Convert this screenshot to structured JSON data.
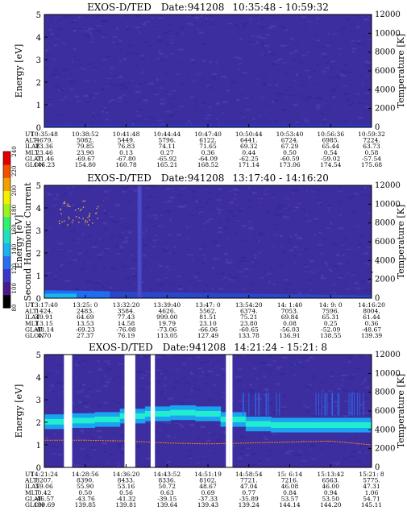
{
  "chart_data": [
    {
      "type": "heatmap",
      "title": "EXOS-D/TED",
      "date_label": "Date:941208",
      "time_range": "10:35:48 - 10:59:32",
      "ylabel": "Energy [eV]",
      "ylabel_right": "Temperature [K]",
      "ylim": [
        0,
        5
      ],
      "yticks": [
        "0",
        "1",
        "2",
        "3",
        "4",
        "5"
      ],
      "ylim_right": [
        0,
        12000
      ],
      "yticks_right": [
        "0",
        "2000",
        "4000",
        "6000",
        "8000",
        "10000",
        "12000"
      ],
      "background": "#3c2e9e",
      "noise": "#4a3bb0",
      "bottom_band_color": "#2a39c4",
      "orbit_row_labels": [
        "UT",
        "ALT",
        "ILAT",
        "MLT",
        "GLAT",
        "GLON"
      ],
      "orbit_columns": [
        [
          "10:35:48",
          "4679.",
          "83.36",
          "23.46",
          "-71.46",
          "146.23"
        ],
        [
          "10:38:52",
          "5082.",
          "79.85",
          "23.90",
          "-69.67",
          "154.80"
        ],
        [
          "10:41:48",
          "5449.",
          "76.83",
          "0.13",
          "-67.80",
          "160.78"
        ],
        [
          "10:44:44",
          "5796.",
          "74.11",
          "0.27",
          "-65.92",
          "165.21"
        ],
        [
          "10:47:40",
          "6122.",
          "71.65",
          "0.36",
          "-64.09",
          "168.52"
        ],
        [
          "10:50:44",
          "6441.",
          "69.32",
          "0.44",
          "-62.25",
          "171.14"
        ],
        [
          "10:53:40",
          "6724.",
          "67.29",
          "0.50",
          "-60.59",
          "173.06"
        ],
        [
          "10:56:36",
          "6985.",
          "65.44",
          "0.54",
          "-59.02",
          "174.54"
        ],
        [
          "10:59:32",
          "7224.",
          "63.73",
          "0.58",
          "-57.54",
          "175.68"
        ]
      ]
    },
    {
      "type": "heatmap",
      "title": "EXOS-D/TED",
      "date_label": "Date:941208",
      "time_range": "13:17:40 - 14:16:20",
      "ylabel": "Energy [eV]",
      "ylabel_right": "Temperature [K]",
      "ylim": [
        0,
        5
      ],
      "yticks": [
        "0",
        "1",
        "2",
        "3",
        "4",
        "5"
      ],
      "ylim_right": [
        0,
        12000
      ],
      "yticks_right": [
        "0",
        "2000",
        "4000",
        "6000",
        "8000",
        "10000",
        "12000"
      ],
      "background": "#3c2e9e",
      "noise": "#4a3bb0",
      "bottom_band_color": "#1f6ef0",
      "orbit_row_labels": [
        "UT",
        "ALT",
        "ILAT",
        "MLT",
        "GLAT",
        "GLON"
      ],
      "orbit_columns": [
        [
          "13:17:40",
          "1424.",
          "49.91",
          "13.15",
          "-48.14",
          "4.70"
        ],
        [
          "13:25: 0",
          "2483.",
          "64.69",
          "13.53",
          "-69.23",
          "27.37"
        ],
        [
          "13:32:20",
          "3584.",
          "77.43",
          "14.58",
          "-76.08",
          "76.19"
        ],
        [
          "13:39:40",
          "4626.",
          "999.00",
          "19.79",
          "-73.06",
          "113.05"
        ],
        [
          "13:47: 0",
          "5562.",
          "81.51",
          "23.10",
          "-66.06",
          "127.49"
        ],
        [
          "13:54:20",
          "6374.",
          "75.21",
          "23.80",
          "-60.65",
          "133.78"
        ],
        [
          "14: 1:40",
          "7053.",
          "69.84",
          "0.08",
          "-56.03",
          "136.91"
        ],
        [
          "14: 9: 0",
          "7596.",
          "65.31",
          "0.25",
          "-52.09",
          "138.55"
        ],
        [
          "14:16:20",
          "8004.",
          "61.44",
          "0.36",
          "-48.67",
          "139.39"
        ]
      ]
    },
    {
      "type": "heatmap",
      "title": "EXOS-D/TED",
      "date_label": "Date:941208",
      "time_range": "14:21:24 - 15:21: 8",
      "ylabel": "Energy [eV]",
      "ylabel_right": "Temperature [K]",
      "ylim": [
        0,
        5
      ],
      "yticks": [
        "0",
        "1",
        "2",
        "3",
        "4",
        "5"
      ],
      "ylim_right": [
        0,
        12000
      ],
      "yticks_right": [
        "0",
        "2000",
        "4000",
        "6000",
        "8000",
        "10000",
        "12000"
      ],
      "background": "#3c2e9e",
      "noise": "#4a3bb0",
      "band_outer": "#1aa3f0",
      "band_inner": "#22eecf",
      "band_energy_ev": [
        2.0,
        2.05,
        2.1,
        2.25,
        2.35,
        2.4,
        2.35,
        2.1,
        1.9,
        1.85,
        1.85,
        1.85,
        1.85
      ],
      "band_times": [
        "14:21:24",
        "14:28:56",
        "14:36:20",
        "14:43:52",
        "14:51:19",
        "14:58:54",
        "15: 6:14",
        "15:13:42",
        "15:21: 8"
      ],
      "temperature_curve_k": [
        2900,
        2900,
        2800,
        2600,
        2500,
        2600,
        2700,
        2800,
        2400
      ],
      "temperature_color": "#ff7a1a",
      "data_gaps_fraction": [
        [
          0.06,
          0.085
        ],
        [
          0.245,
          0.278
        ],
        [
          0.325,
          0.338
        ],
        [
          0.555,
          0.565
        ],
        [
          0.565,
          0.575
        ]
      ],
      "orbit_row_labels": [
        "UT",
        "ALT",
        "ILAT",
        "MLT",
        "GLAT",
        "GLON"
      ],
      "orbit_columns": [
        [
          "14:21:24",
          "8207.",
          "59.06",
          "0.42",
          "-46.57",
          "139.69"
        ],
        [
          "14:28:56",
          "8390.",
          "55.90",
          "0.50",
          "-43.76",
          "139.85"
        ],
        [
          "14:36:20",
          "8433.",
          "53.16",
          "0.56",
          "-41.32",
          "139.81"
        ],
        [
          "14:43:52",
          "8336.",
          "50.72",
          "0.63",
          "-39.15",
          "139.64"
        ],
        [
          "14:51:19",
          "8102.",
          "48.67",
          "0.69",
          "-37.33",
          "139.43"
        ],
        [
          "14:58:54",
          "7721.",
          "47.04",
          "0.77",
          "-35.89",
          "139.24"
        ],
        [
          "15: 6:14",
          "7216.",
          "46.08",
          "0.84",
          "53.57",
          "144.14"
        ],
        [
          "15:13:42",
          "6563.",
          "46.00",
          "0.94",
          "53.50",
          "144.20"
        ],
        [
          "15:21: 8",
          "5775.",
          "47.31",
          "1.06",
          "54.71",
          "145.11"
        ]
      ]
    }
  ],
  "colorbar": {
    "label": "Second Harmonic Current",
    "min": 80,
    "max": 240,
    "ticks": [
      "80",
      "100",
      "120",
      "140",
      "160",
      "180",
      "200",
      "220",
      "240"
    ],
    "colors": [
      "#000000",
      "#4a1a8a",
      "#3a38c8",
      "#2a6ef0",
      "#1ab4f0",
      "#20e0c0",
      "#30f070",
      "#a0f020",
      "#f0f000",
      "#f0a000",
      "#f05000",
      "#e00000"
    ]
  }
}
